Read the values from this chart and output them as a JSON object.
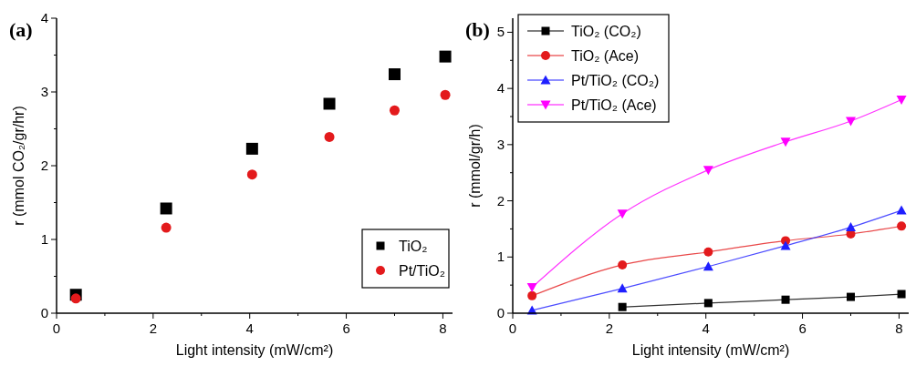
{
  "chart_data": [
    {
      "type": "scatter",
      "title": "(a)",
      "xlabel": "Light intensity (mW/cm²)",
      "ylabel": "r (mmol CO₂/gr/hr)",
      "x": [
        0.4,
        2.27,
        4.05,
        5.65,
        7.0,
        8.05
      ],
      "series": [
        {
          "name": "TiO₂",
          "color": "#000000",
          "marker": "square",
          "values": [
            0.25,
            1.42,
            2.23,
            2.84,
            3.24,
            3.48
          ]
        },
        {
          "name": "Pt/TiO₂",
          "color": "#e31a1c",
          "marker": "circle",
          "values": [
            0.2,
            1.16,
            1.88,
            2.39,
            2.75,
            2.96
          ]
        }
      ],
      "xlim": [
        0,
        8.2
      ],
      "xticks": [
        0,
        {
          "value": 1,
          "label": null
        },
        2,
        {
          "value": 3,
          "label": null
        },
        4,
        {
          "value": 5,
          "label": null
        },
        6,
        {
          "value": 7,
          "label": null
        },
        8
      ],
      "ylim": [
        0,
        4
      ],
      "yticks": [
        0,
        {
          "value": 0.5,
          "label": null
        },
        1,
        {
          "value": 1.5,
          "label": null
        },
        2,
        {
          "value": 2.5,
          "label": null
        },
        3,
        {
          "value": 3.5,
          "label": null
        },
        4
      ],
      "grid": false,
      "legend": "bottom right"
    },
    {
      "type": "line",
      "title": "(b)",
      "xlabel": "Light intensity (mW/cm²)",
      "ylabel": "r (mmol/gr/h)",
      "x": [
        0.4,
        2.27,
        4.05,
        5.65,
        7.0,
        8.05
      ],
      "series": [
        {
          "name": "TiO₂ (CO₂)",
          "color": "#000000",
          "marker": "square",
          "values": [
            null,
            0.11,
            0.18,
            0.24,
            0.29,
            0.34
          ]
        },
        {
          "name": "TiO₂ (Ace)",
          "color": "#e31a1c",
          "marker": "circle",
          "values": [
            0.31,
            0.86,
            1.09,
            1.29,
            1.41,
            1.55
          ]
        },
        {
          "name": "Pt/TiO₂ (CO₂)",
          "color": "#1f1fff",
          "marker": "triangle",
          "values": [
            0.05,
            0.44,
            0.83,
            1.2,
            1.53,
            1.83
          ]
        },
        {
          "name": "Pt/TiO₂ (Ace)",
          "color": "#ff00ff",
          "marker": "triangle-down",
          "values": [
            0.46,
            1.77,
            2.55,
            3.05,
            3.42,
            3.8
          ]
        }
      ],
      "xlim": [
        0,
        8.2
      ],
      "xticks": [
        0,
        {
          "value": 1,
          "label": null
        },
        2,
        {
          "value": 3,
          "label": null
        },
        4,
        {
          "value": 5,
          "label": null
        },
        6,
        {
          "value": 7,
          "label": null
        },
        8
      ],
      "ylim": [
        0,
        5.25
      ],
      "yticks": [
        0,
        {
          "value": 0.5,
          "label": null
        },
        1,
        {
          "value": 1.5,
          "label": null
        },
        2,
        {
          "value": 2.5,
          "label": null
        },
        3,
        {
          "value": 3.5,
          "label": null
        },
        4,
        {
          "value": 4.5,
          "label": null
        },
        5
      ],
      "grid": false,
      "legend": "top left",
      "line_style": "solid"
    }
  ]
}
